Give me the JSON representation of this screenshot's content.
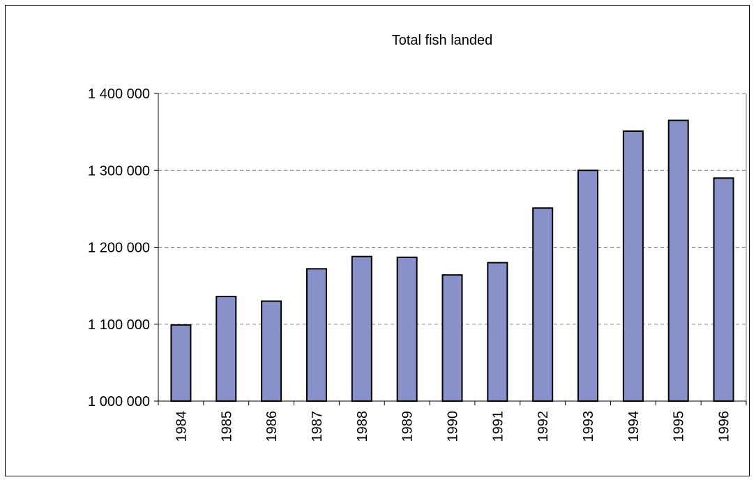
{
  "chart_data": {
    "type": "bar",
    "title": "Total fish landed",
    "xlabel": "",
    "ylabel": "",
    "categories": [
      "1984",
      "1985",
      "1986",
      "1987",
      "1988",
      "1989",
      "1990",
      "1991",
      "1992",
      "1993",
      "1994",
      "1995",
      "1996"
    ],
    "values": [
      1099000,
      1136000,
      1130000,
      1172000,
      1188000,
      1187000,
      1164000,
      1180000,
      1251000,
      1300000,
      1351000,
      1365000,
      1290000
    ],
    "ylim": [
      1000000,
      1400000
    ],
    "yticks": [
      1000000,
      1100000,
      1200000,
      1300000,
      1400000
    ],
    "ytick_labels": [
      "1 000 000",
      "1 100 000",
      "1 200 000",
      "1 300 000",
      "1 400 000"
    ],
    "grid": "horizontal dashed",
    "legend": "none",
    "bar_color": "#8891c9",
    "bar_edge_color": "#000000",
    "grid_color": "#808080"
  }
}
